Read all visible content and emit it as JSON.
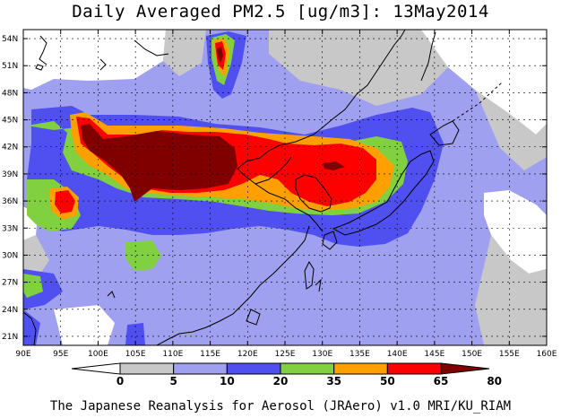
{
  "title": "Daily Averaged PM2.5 [ug/m3]: 13May2014",
  "footer": "The Japanese Reanalysis for Aerosol (JRAero) v1.0 MRI/KU_RIAM",
  "map": {
    "lon_labels": [
      "90E",
      "95E",
      "100E",
      "105E",
      "110E",
      "115E",
      "120E",
      "125E",
      "130E",
      "135E",
      "140E",
      "145E",
      "150E",
      "155E",
      "160E"
    ],
    "lat_labels": [
      "54N",
      "51N",
      "48N",
      "45N",
      "42N",
      "39N",
      "36N",
      "33N",
      "30N",
      "27N",
      "24N",
      "21N"
    ],
    "lon_range": [
      90,
      160
    ],
    "lat_range": [
      20,
      55
    ],
    "grid": true,
    "overlay": "coastlines"
  },
  "colorbar": {
    "ticks": [
      "0",
      "5",
      "10",
      "20",
      "35",
      "50",
      "65",
      "80"
    ],
    "colors": [
      "#ffffff",
      "#c8c8c8",
      "#a0a0f0",
      "#5050f0",
      "#80d040",
      "#ffa000",
      "#ff0000",
      "#800000"
    ],
    "orientation": "horizontal",
    "triangle_ends": true
  },
  "colors": {
    "gray": "#c8c8c8",
    "light_blue": "#a0a0f0",
    "blue": "#5050f0",
    "green": "#80d040",
    "orange": "#ffa000",
    "red": "#ff0000",
    "dark_red": "#800000",
    "frame": "#000000"
  }
}
